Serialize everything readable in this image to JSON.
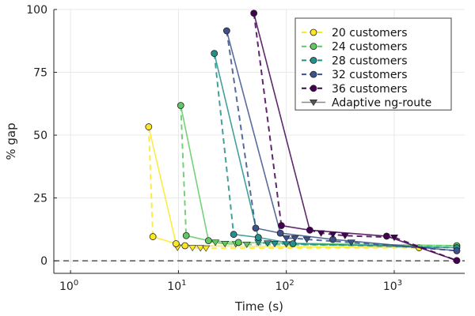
{
  "chart_data": {
    "type": "line",
    "xlabel": "Time (s)",
    "ylabel": "% gap",
    "xscale": "log10",
    "xlim": [
      0.7,
      4500
    ],
    "ylim": [
      -5,
      100
    ],
    "xticks": [
      1,
      10,
      100,
      1000
    ],
    "xtick_labels": [
      {
        "base": "10",
        "exp": "0"
      },
      {
        "base": "10",
        "exp": "1"
      },
      {
        "base": "10",
        "exp": "2"
      },
      {
        "base": "10",
        "exp": "3"
      }
    ],
    "yticks": [
      0,
      25,
      50,
      75,
      100
    ],
    "ytick_labels": [
      "0",
      "25",
      "50",
      "75",
      "100"
    ],
    "grid": true,
    "reference_line": {
      "y": 0,
      "style": "dashed"
    },
    "legend_position": "top-right",
    "series": [
      {
        "name": "20 customers",
        "color": "#fde725",
        "lb_points": [
          [
            5.3,
            53.3
          ],
          [
            5.8,
            9.6
          ],
          [
            9.5,
            6.8
          ],
          [
            11.5,
            6.0
          ],
          [
            1700,
            5.2
          ]
        ],
        "adaptive_points": [
          [
            9.8,
            5.3
          ],
          [
            13.5,
            5.2
          ],
          [
            16,
            5.1
          ],
          [
            18,
            5.0
          ]
        ]
      },
      {
        "name": "24 customers",
        "color": "#5ec962",
        "lb_points": [
          [
            10.5,
            61.8
          ],
          [
            11.8,
            10.0
          ],
          [
            19,
            8.0
          ],
          [
            36,
            7.3
          ],
          [
            3800,
            6.0
          ]
        ],
        "adaptive_points": [
          [
            22,
            7.3
          ],
          [
            27,
            6.8
          ],
          [
            34,
            6.7
          ],
          [
            43,
            6.5
          ]
        ]
      },
      {
        "name": "28 customers",
        "color": "#21918c",
        "lb_points": [
          [
            21.5,
            82.5
          ],
          [
            32.5,
            10.5
          ],
          [
            55,
            9.3
          ],
          [
            115,
            6.8
          ],
          [
            3800,
            5.2
          ]
        ],
        "adaptive_points": [
          [
            55,
            7.3
          ],
          [
            67,
            7.0
          ],
          [
            78,
            6.8
          ],
          [
            100,
            6.7
          ]
        ]
      },
      {
        "name": "32 customers",
        "color": "#3b528b",
        "lb_points": [
          [
            28,
            91.5
          ],
          [
            52,
            13.0
          ],
          [
            88,
            11.0
          ],
          [
            270,
            8.5
          ],
          [
            3800,
            4.0
          ]
        ],
        "adaptive_points": [
          [
            100,
            9.0
          ],
          [
            120,
            9.0
          ],
          [
            155,
            8.5
          ],
          [
            400,
            7.3
          ]
        ]
      },
      {
        "name": "36 customers",
        "color": "#440154",
        "lb_points": [
          [
            50,
            98.5
          ],
          [
            90,
            14.0
          ],
          [
            165,
            12.2
          ],
          [
            850,
            9.8
          ],
          [
            3800,
            0.1
          ]
        ],
        "adaptive_points": [
          [
            210,
            11.0
          ],
          [
            270,
            10.5
          ],
          [
            350,
            10.0
          ],
          [
            1000,
            9.3
          ]
        ]
      }
    ],
    "adaptive_label": "Adaptive ng-route",
    "adaptive_color": "#888888"
  }
}
